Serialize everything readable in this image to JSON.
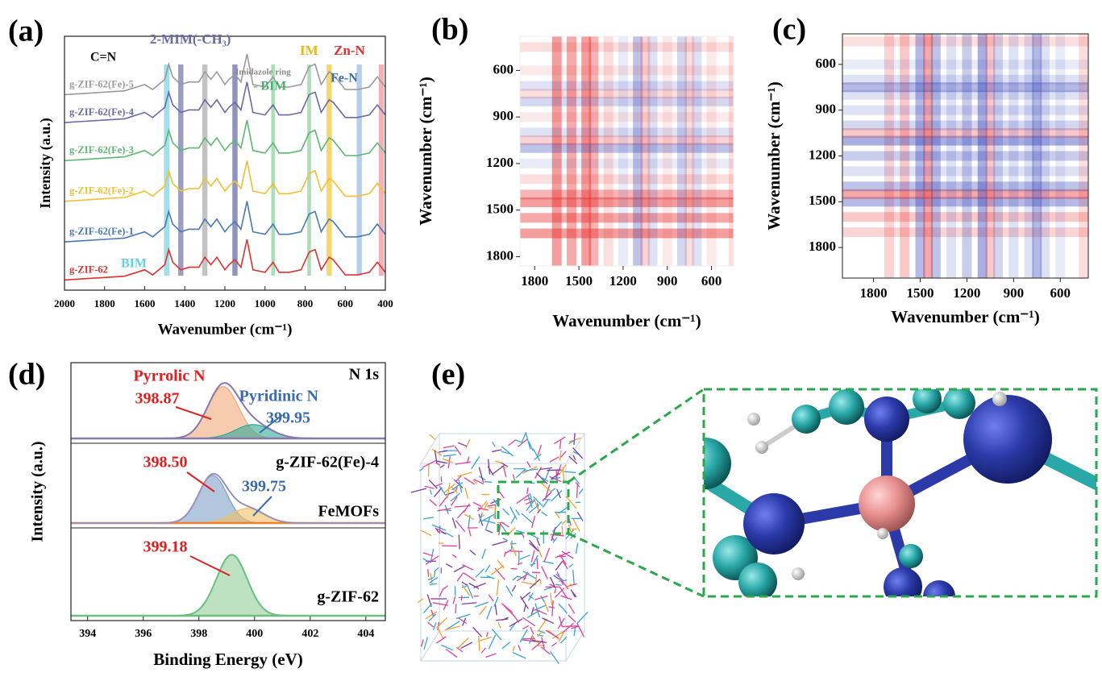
{
  "panel_labels": [
    "(a)",
    "(b)",
    "(c)",
    "(d)",
    "(e)"
  ],
  "chart_data": [
    {
      "type": "spectra",
      "xlabel": "Wavenumber (cm⁻¹)",
      "ylabel": "Intensity (a.u.)",
      "xlim": [
        2000,
        400
      ],
      "xticks": [
        2000,
        1800,
        1600,
        1400,
        1200,
        1000,
        800,
        600,
        400
      ],
      "ylim": [
        0,
        10
      ],
      "x": [
        2000,
        1900,
        1800,
        1700,
        1600,
        1560,
        1500,
        1480,
        1460,
        1420,
        1380,
        1330,
        1300,
        1270,
        1240,
        1200,
        1180,
        1150,
        1120,
        1090,
        1060,
        1000,
        960,
        930,
        880,
        820,
        780,
        750,
        720,
        680,
        660,
        600,
        540,
        480,
        440,
        400
      ],
      "series": [
        {
          "name": "g-ZIF-62",
          "color": "#e03030",
          "values": [
            0.4,
            0.45,
            0.5,
            0.55,
            0.8,
            0.6,
            1.0,
            1.6,
            1.1,
            0.8,
            0.9,
            0.9,
            1.3,
            1.0,
            1.3,
            0.8,
            1.0,
            1.2,
            0.9,
            2.0,
            0.8,
            0.7,
            1.1,
            0.7,
            0.7,
            0.8,
            1.5,
            1.6,
            0.8,
            1.3,
            1.2,
            0.6,
            0.6,
            0.7,
            1.1,
            0.7
          ]
        },
        {
          "name": "g-ZIF-62(Fe)-1",
          "color": "#4a78b8",
          "values": [
            1.9,
            1.95,
            2.0,
            2.05,
            2.3,
            2.1,
            2.5,
            3.1,
            2.6,
            2.3,
            2.4,
            2.4,
            2.8,
            2.5,
            2.8,
            2.3,
            2.5,
            2.7,
            2.4,
            3.5,
            2.3,
            2.2,
            2.6,
            2.2,
            2.2,
            2.3,
            3.0,
            3.1,
            2.3,
            2.8,
            2.7,
            2.1,
            2.1,
            2.2,
            2.6,
            2.2
          ]
        },
        {
          "name": "g-ZIF-62(Fe)-2",
          "color": "#f0c030",
          "values": [
            3.5,
            3.55,
            3.6,
            3.65,
            3.9,
            3.7,
            4.1,
            4.7,
            4.2,
            3.9,
            4.0,
            4.0,
            4.4,
            4.1,
            4.4,
            3.9,
            4.1,
            4.3,
            4.0,
            5.1,
            3.9,
            3.8,
            4.2,
            3.8,
            3.8,
            3.9,
            4.6,
            4.7,
            3.9,
            4.4,
            4.3,
            3.7,
            3.7,
            3.8,
            4.2,
            3.8
          ]
        },
        {
          "name": "g-ZIF-62(Fe)-3",
          "color": "#5cb870",
          "values": [
            5.1,
            5.15,
            5.2,
            5.25,
            5.5,
            5.3,
            5.7,
            6.3,
            5.8,
            5.5,
            5.6,
            5.6,
            6.0,
            5.7,
            6.0,
            5.5,
            5.7,
            5.9,
            5.6,
            6.7,
            5.5,
            5.4,
            5.8,
            5.4,
            5.4,
            5.5,
            6.2,
            6.3,
            5.5,
            6.0,
            5.9,
            5.3,
            5.3,
            5.4,
            5.8,
            5.4
          ]
        },
        {
          "name": "g-ZIF-62(Fe)-4",
          "color": "#6a6aa8",
          "values": [
            6.6,
            6.65,
            6.7,
            6.75,
            7.0,
            6.8,
            7.2,
            7.8,
            7.3,
            7.0,
            7.1,
            7.1,
            7.5,
            7.2,
            7.5,
            7.0,
            7.2,
            7.4,
            7.1,
            8.2,
            7.0,
            6.9,
            7.3,
            6.9,
            6.9,
            7.0,
            7.7,
            7.8,
            7.0,
            7.5,
            7.4,
            6.8,
            6.8,
            6.9,
            7.3,
            6.9
          ]
        },
        {
          "name": "g-ZIF-62(Fe)-5",
          "color": "#9a9a9a",
          "values": [
            7.7,
            7.75,
            7.8,
            7.85,
            8.1,
            7.9,
            8.3,
            8.9,
            8.4,
            8.1,
            8.2,
            8.2,
            8.6,
            8.3,
            8.6,
            8.1,
            8.3,
            8.5,
            8.2,
            9.3,
            8.1,
            8.0,
            8.4,
            8.0,
            8.0,
            8.1,
            8.8,
            8.9,
            8.1,
            8.6,
            8.5,
            7.9,
            7.9,
            8.0,
            8.4,
            8.0
          ]
        }
      ],
      "bands": [
        {
          "x": 1490,
          "width": 28,
          "color": "#8fdbe8"
        },
        {
          "x": 1420,
          "width": 26,
          "color": "#8a8cb8"
        },
        {
          "x": 1300,
          "width": 26,
          "color": "#b8b8b8"
        },
        {
          "x": 1150,
          "width": 26,
          "color": "#7e80b0"
        },
        {
          "x": 960,
          "width": 18,
          "color": "#9ad8aa"
        },
        {
          "x": 780,
          "width": 18,
          "color": "#9ad8aa"
        },
        {
          "x": 680,
          "width": 26,
          "color": "#f5d050"
        },
        {
          "x": 530,
          "width": 26,
          "color": "#aac6e8"
        },
        {
          "x": 420,
          "width": 26,
          "color": "#f2a4ac"
        }
      ],
      "annotations": [
        {
          "text": "C=N",
          "color": "#111111"
        },
        {
          "text": "2-MIM(-CH₃)",
          "color": "#6a6aa8"
        },
        {
          "text": "Imidazole ring",
          "color": "#8a8a8a"
        },
        {
          "text": "- BIM",
          "color": "#4caf70"
        },
        {
          "text": "IM",
          "color": "#e8b820"
        },
        {
          "text": "Zn-N",
          "color": "#e03030"
        },
        {
          "text": "Fe-N",
          "color": "#3a6ab0"
        },
        {
          "text": "BIM",
          "color": "#60d0e8"
        }
      ]
    },
    {
      "type": "heatmap",
      "xlabel": "Wavenumber (cm⁻¹)",
      "ylabel": "Wavenumber (cm⁻¹)",
      "xlim": [
        1900,
        450
      ],
      "ylim": [
        380,
        1860
      ],
      "xticks": [
        1800,
        1500,
        1200,
        900,
        600
      ],
      "yticks": [
        600,
        900,
        1200,
        1500,
        1800
      ],
      "x": [
        1650,
        1550,
        1450,
        1400,
        1300,
        1200,
        1100,
        1050,
        1000,
        900,
        800,
        750,
        700,
        600,
        450
      ],
      "values": [
        0.9,
        0.8,
        0.9,
        0.7,
        0.3,
        -0.2,
        -0.6,
        0.4,
        -0.3,
        0.2,
        -0.4,
        0.3,
        -0.3,
        0.2,
        0.3
      ],
      "colors": {
        "positive": "#e62828",
        "negative": "#2838b4"
      }
    },
    {
      "type": "heatmap",
      "xlabel": "Wavenumber (cm⁻¹)",
      "ylabel": "Wavenumber (cm⁻¹)",
      "xlim": [
        2000,
        420
      ],
      "ylim": [
        400,
        2000
      ],
      "xticks": [
        1800,
        1500,
        1200,
        900,
        600
      ],
      "yticks": [
        600,
        900,
        1200,
        1500,
        1800
      ],
      "x": [
        1700,
        1600,
        1500,
        1450,
        1400,
        1300,
        1200,
        1100,
        1050,
        1000,
        900,
        800,
        750,
        700,
        600,
        450
      ],
      "values": [
        0.4,
        0.5,
        -0.7,
        0.8,
        -0.6,
        -0.3,
        -0.5,
        -0.8,
        0.5,
        -0.4,
        -0.3,
        -0.3,
        -0.7,
        -0.3,
        -0.2,
        0.3
      ],
      "colors": {
        "positive": "#e62828",
        "negative": "#2838b4"
      }
    },
    {
      "type": "xps",
      "xlabel": "Binding Energy (eV)",
      "ylabel": "Intensity (a.u.)",
      "xlim": [
        393.4,
        404.7
      ],
      "xticks": [
        394,
        396,
        398,
        400,
        402,
        404
      ],
      "ylim": [
        0,
        1
      ],
      "panels": [
        {
          "envelope_color": "#8878b0",
          "baseline_color": "#8878b0",
          "labels": [
            "N 1s"
          ],
          "peaks": [
            {
              "name": "Pyrrolic N",
              "center": 398.87,
              "height": 0.75,
              "fwhm": 1.3,
              "color": "#f0a878",
              "label_color": "#e02020"
            },
            {
              "name": "Pyridinic N",
              "center": 399.95,
              "height": 0.2,
              "fwhm": 1.5,
              "color": "#30a898",
              "label_color": "#3a6ab0"
            }
          ]
        },
        {
          "envelope_color": "#9a90b8",
          "baseline_color": "#f08030",
          "labels": [
            "g-ZIF-62(Fe)-4",
            "FeMOFs"
          ],
          "peaks": [
            {
              "center": 398.5,
              "value_label": "398.50",
              "height": 0.65,
              "fwhm": 1.2,
              "color": "#7fa0c8",
              "label_color": "#e02020"
            },
            {
              "center": 399.75,
              "height": 0.2,
              "fwhm": 1.4,
              "color": "#f0c060",
              "label_color": "#3a6ab0"
            }
          ]
        },
        {
          "envelope_color": "#6cbf7c",
          "baseline_color": "#6cbf7c",
          "labels": [
            "g-ZIF-62"
          ],
          "peaks": [
            {
              "center": 399.18,
              "height": 0.75,
              "fwhm": 1.3,
              "color": "#8fce9a",
              "label_color": "#e02020"
            }
          ]
        }
      ]
    }
  ]
}
